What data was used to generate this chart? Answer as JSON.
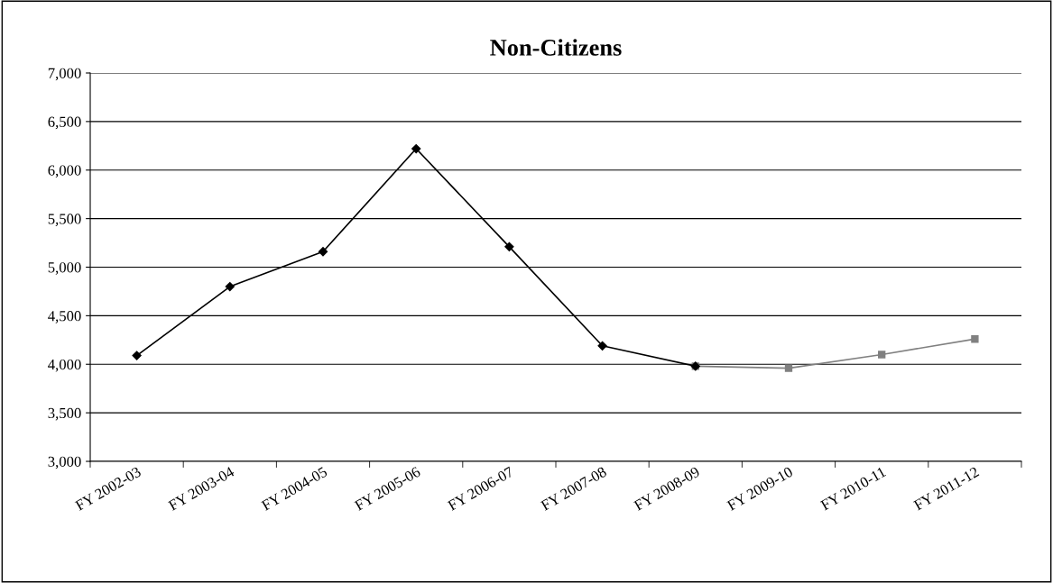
{
  "chart_data": {
    "type": "line",
    "title": "Non-Citizens",
    "categories": [
      "FY 2002-03",
      "FY 2003-04",
      "FY 2004-05",
      "FY 2005-06",
      "FY 2006-07",
      "FY 2007-08",
      "FY 2008-09",
      "FY 2009-10",
      "FY 2010-11",
      "FY 2011-12"
    ],
    "series": [
      {
        "color": "#808080",
        "marker": "square",
        "values": [
          null,
          null,
          null,
          null,
          null,
          null,
          3980,
          3960,
          4100,
          4260
        ]
      },
      {
        "color": "#000000",
        "marker": "diamond",
        "values": [
          4090,
          4800,
          5160,
          6220,
          5210,
          4190,
          3980,
          null,
          null,
          null
        ]
      }
    ],
    "ylim": [
      3000,
      7000
    ],
    "yticks": [
      {
        "value": 3000,
        "label": "3,000"
      },
      {
        "value": 3500,
        "label": "3,500"
      },
      {
        "value": 4000,
        "label": "4,000"
      },
      {
        "value": 4500,
        "label": "4,500"
      },
      {
        "value": 5000,
        "label": "5,000"
      },
      {
        "value": 5500,
        "label": "5,500"
      },
      {
        "value": 6000,
        "label": "6,000"
      },
      {
        "value": 6500,
        "label": "6,500"
      },
      {
        "value": 7000,
        "label": "7,000"
      }
    ],
    "grid": "y",
    "legend": false,
    "line_style": "solid"
  }
}
